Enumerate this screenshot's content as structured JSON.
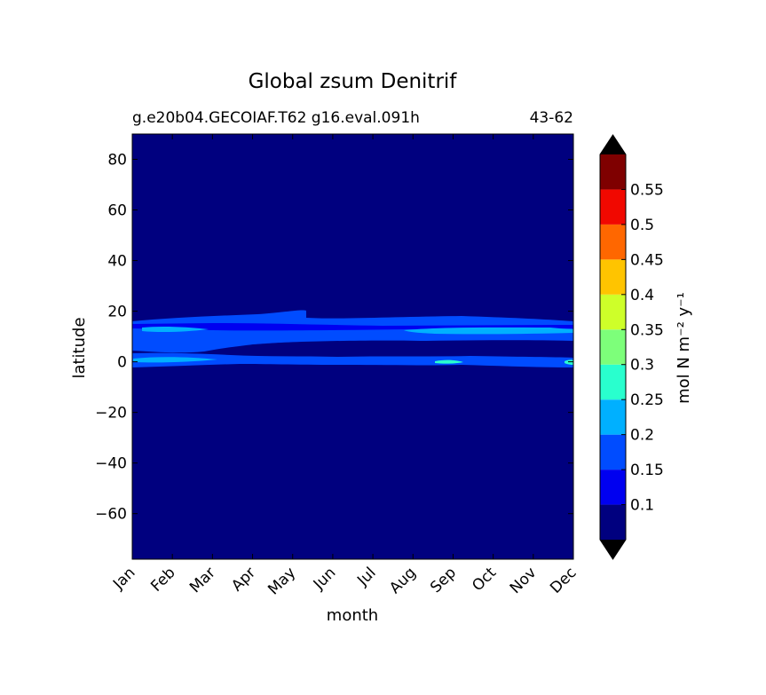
{
  "chart_data": {
    "type": "heatmap",
    "title": "Global zsum Denitrif",
    "subtitle_left": "g.e20b04.GECOIAF.T62 g16.eval.091h",
    "subtitle_right": "43-62",
    "xlabel": "month",
    "ylabel": "latitude",
    "x_categories": [
      "Jan",
      "Feb",
      "Mar",
      "Apr",
      "May",
      "Jun",
      "Jul",
      "Aug",
      "Sep",
      "Oct",
      "Nov",
      "Dec"
    ],
    "y_ticks": [
      -60,
      -40,
      -20,
      0,
      20,
      40,
      60,
      80
    ],
    "ylim": [
      -78,
      90
    ],
    "colorbar": {
      "label": "mol N m⁻² y⁻¹",
      "ticks": [
        "0.1",
        "0.15",
        "0.2",
        "0.25",
        "0.3",
        "0.35",
        "0.4",
        "0.45",
        "0.5",
        "0.55"
      ],
      "levels": [
        0.05,
        0.1,
        0.15,
        0.2,
        0.25,
        0.3,
        0.35,
        0.4,
        0.45,
        0.5,
        0.55,
        0.6
      ],
      "colors": [
        "#00007f",
        "#0000f0",
        "#004cff",
        "#00b0ff",
        "#29ffce",
        "#7dff7a",
        "#ceff29",
        "#ffc400",
        "#ff6700",
        "#f10800",
        "#7f0000"
      ],
      "extend_color": "#000000"
    },
    "background_color": "#00007f",
    "features": [
      {
        "name": "northern tropical band",
        "lat_min": 7,
        "lat_max": 17,
        "value_range": [
          0.1,
          0.25
        ]
      },
      {
        "name": "equatorial band",
        "lat_min": -3,
        "lat_max": 2,
        "value_range": [
          0.1,
          0.25
        ]
      }
    ]
  }
}
